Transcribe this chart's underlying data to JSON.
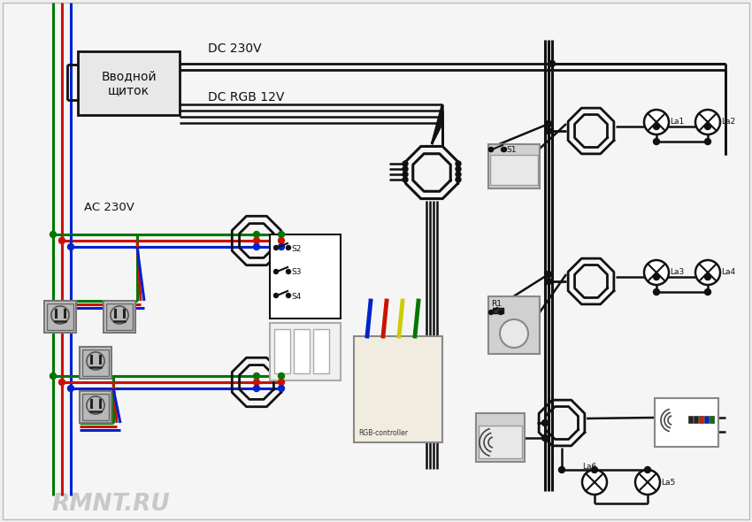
{
  "bg_color": "#f0f0f0",
  "wire_black": "#111111",
  "wire_red": "#cc1100",
  "wire_blue": "#0022cc",
  "wire_green": "#007700",
  "labels": {
    "dc230v": "DC 230V",
    "dcrgb12v": "DC RGB 12V",
    "ac230v": "AC 230V",
    "panel": "Вводной\nщиток",
    "watermark": "RMNT.RU",
    "S1": "S1",
    "S2": "S2",
    "S3": "S3",
    "S4": "S4",
    "R1": "R1",
    "La1": "La1",
    "La2": "La2",
    "La3": "La3",
    "La4": "La4",
    "La5": "La5",
    "La6": "La6"
  }
}
